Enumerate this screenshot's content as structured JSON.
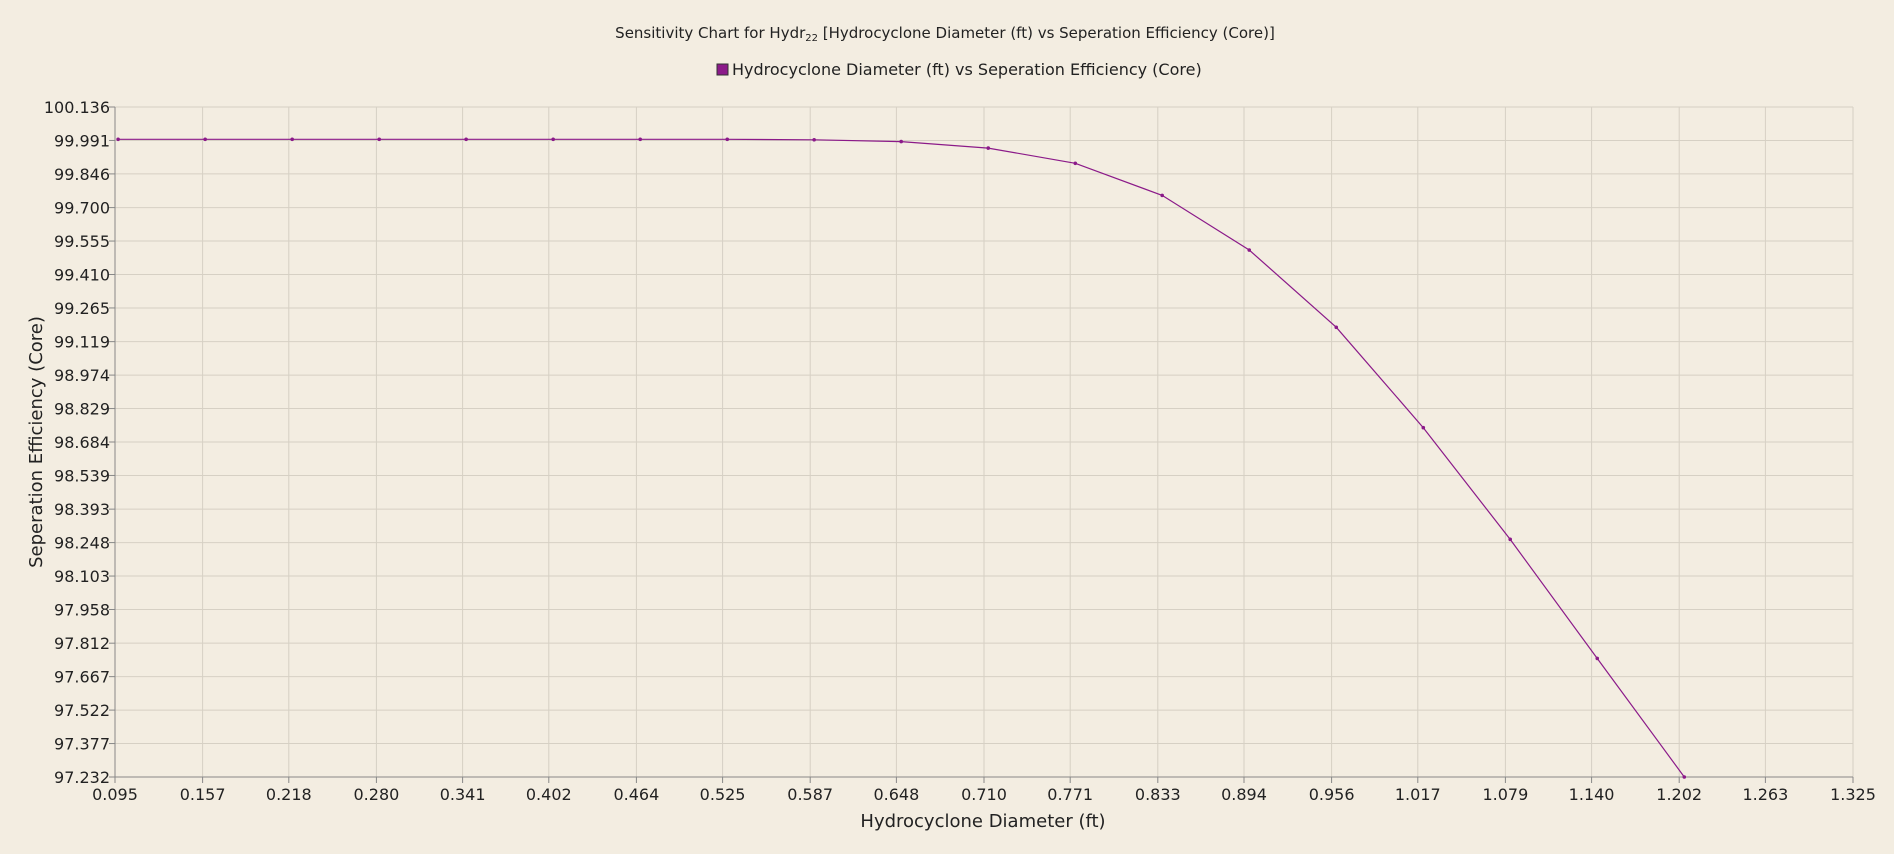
{
  "chart_data": {
    "type": "line",
    "title_prefix": "Sensitivity Chart for Hydr",
    "title_subscript": "22",
    "title_suffix": " [Hydrocyclone Diameter (ft) vs Seperation Efficiency (Core)]",
    "xlabel": "Hydrocyclone Diameter (ft)",
    "ylabel": "Seperation Efficiency (Core)",
    "xlim": [
      0.095,
      1.325
    ],
    "ylim": [
      97.232,
      100.136
    ],
    "x_ticks": [
      "0.095",
      "0.157",
      "0.218",
      "0.280",
      "0.341",
      "0.402",
      "0.464",
      "0.525",
      "0.587",
      "0.648",
      "0.710",
      "0.771",
      "0.833",
      "0.894",
      "0.956",
      "1.017",
      "1.079",
      "1.140",
      "1.202",
      "1.263",
      "1.325"
    ],
    "y_ticks": [
      "100.136",
      "99.991",
      "99.846",
      "99.700",
      "99.555",
      "99.410",
      "99.265",
      "99.119",
      "98.974",
      "98.829",
      "98.684",
      "98.539",
      "98.393",
      "98.248",
      "98.103",
      "97.958",
      "97.812",
      "97.667",
      "97.522",
      "97.377",
      "97.232"
    ],
    "grid": true,
    "legend_position": "top-center",
    "series": [
      {
        "name": "Hydrocyclone Diameter (ft) vs Seperation Efficiency (Core)",
        "color": "#8b1a89",
        "x": [
          0.0972,
          0.1588,
          0.2204,
          0.282,
          0.3435,
          0.4051,
          0.4667,
          0.5283,
          0.5898,
          0.6514,
          0.713,
          0.7746,
          0.8361,
          0.8977,
          0.9593,
          1.0209,
          1.0824,
          1.144,
          1.2056
        ],
        "y": [
          99.996,
          99.996,
          99.996,
          99.996,
          99.996,
          99.996,
          99.996,
          99.996,
          99.994,
          99.986,
          99.958,
          99.892,
          99.753,
          99.516,
          99.181,
          98.746,
          98.262,
          97.746,
          97.232
        ]
      }
    ]
  }
}
